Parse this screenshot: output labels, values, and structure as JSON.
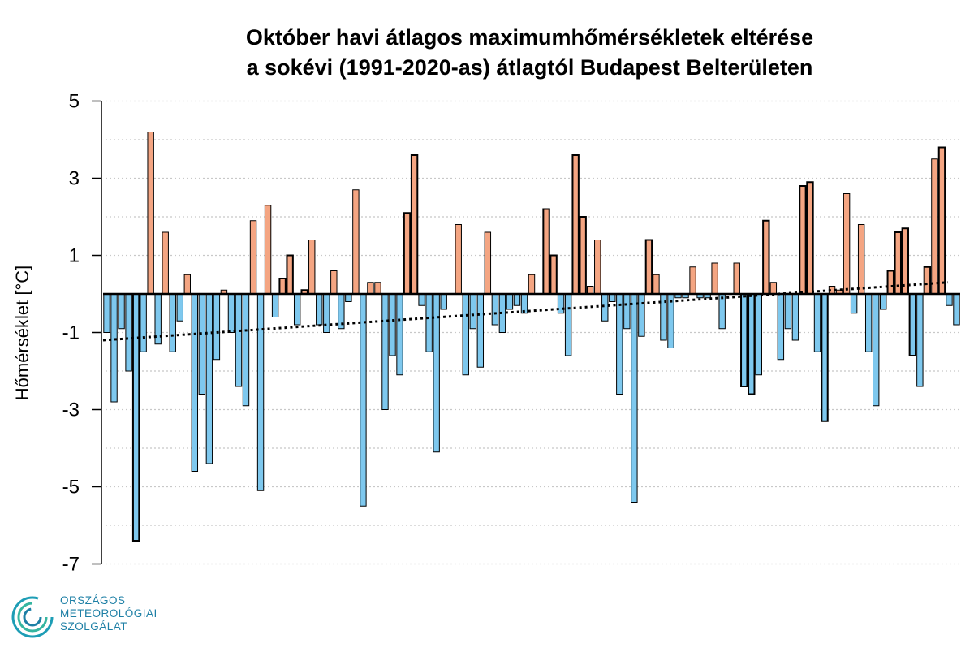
{
  "title_line1": "Október havi átlagos maximumhőmérsékletek eltérése",
  "title_line2": "a sokévi (1991-2020-as) átlagtól Budapest Belterületen",
  "logo": {
    "line1": "ORSZÁGOS",
    "line2": "METEOROLÓGIAI",
    "line3": "SZOLGÁLAT",
    "color": "#1d7fa5"
  },
  "colors": {
    "positive": "#f4a582",
    "negative": "#7ec8ee",
    "grid": "#c8c8c8",
    "trend": "#000000"
  },
  "chart_data": {
    "type": "bar",
    "title": "Október havi átlagos maximumhőmérsékletek eltérése a sokévi (1991-2020-as) átlagtól Budapest Belterületen",
    "ylabel": "Hőmérséklet [°C]",
    "xlabel": "",
    "ylim": [
      -7,
      5
    ],
    "yticks": [
      5,
      3,
      1,
      -1,
      -3,
      -5,
      -7
    ],
    "grid": "horizontal dotted every 1 °C",
    "values": [
      -1.0,
      -2.8,
      -0.9,
      -2.0,
      -6.4,
      -1.5,
      4.2,
      -1.3,
      1.6,
      -1.5,
      -0.7,
      0.5,
      -4.6,
      -2.6,
      -4.4,
      -1.7,
      0.1,
      -1.0,
      -2.4,
      -2.9,
      1.9,
      -5.1,
      2.3,
      -0.6,
      0.4,
      1.0,
      -0.8,
      0.1,
      1.4,
      -0.8,
      -1.0,
      0.6,
      -0.9,
      -0.2,
      2.7,
      -5.5,
      0.3,
      0.3,
      -3.0,
      -1.6,
      -2.1,
      2.1,
      3.6,
      -0.3,
      -1.5,
      -4.1,
      -0.4,
      0.0,
      1.8,
      -2.1,
      -0.9,
      -1.9,
      1.6,
      -0.8,
      -1.0,
      -0.4,
      -0.3,
      -0.5,
      0.5,
      0.0,
      2.2,
      1.0,
      -0.5,
      -1.6,
      3.6,
      2.0,
      0.2,
      1.4,
      -0.7,
      -0.2,
      -2.6,
      -0.9,
      -5.4,
      -1.1,
      1.4,
      0.5,
      -1.2,
      -1.4,
      -0.1,
      -0.1,
      0.7,
      -0.1,
      -0.1,
      0.8,
      -0.9,
      0.0,
      0.8,
      -2.4,
      -2.6,
      -2.1,
      1.9,
      0.3,
      -1.7,
      -0.9,
      -1.2,
      2.8,
      2.9,
      -1.5,
      -3.3,
      0.2,
      0.1,
      2.6,
      -0.5,
      1.8,
      -1.5,
      -2.9,
      -0.4,
      0.6,
      1.6,
      1.7,
      -1.6,
      -2.4,
      0.7,
      3.5,
      3.8,
      -0.3,
      -0.8
    ],
    "highlighted_index": [
      4,
      24,
      25,
      27,
      41,
      42,
      60,
      61,
      64,
      65,
      74,
      87,
      88,
      90,
      95,
      96,
      98,
      107,
      108,
      109,
      110,
      112,
      114
    ],
    "trend": {
      "style": "dotted",
      "start": -1.2,
      "end": 0.3
    }
  }
}
